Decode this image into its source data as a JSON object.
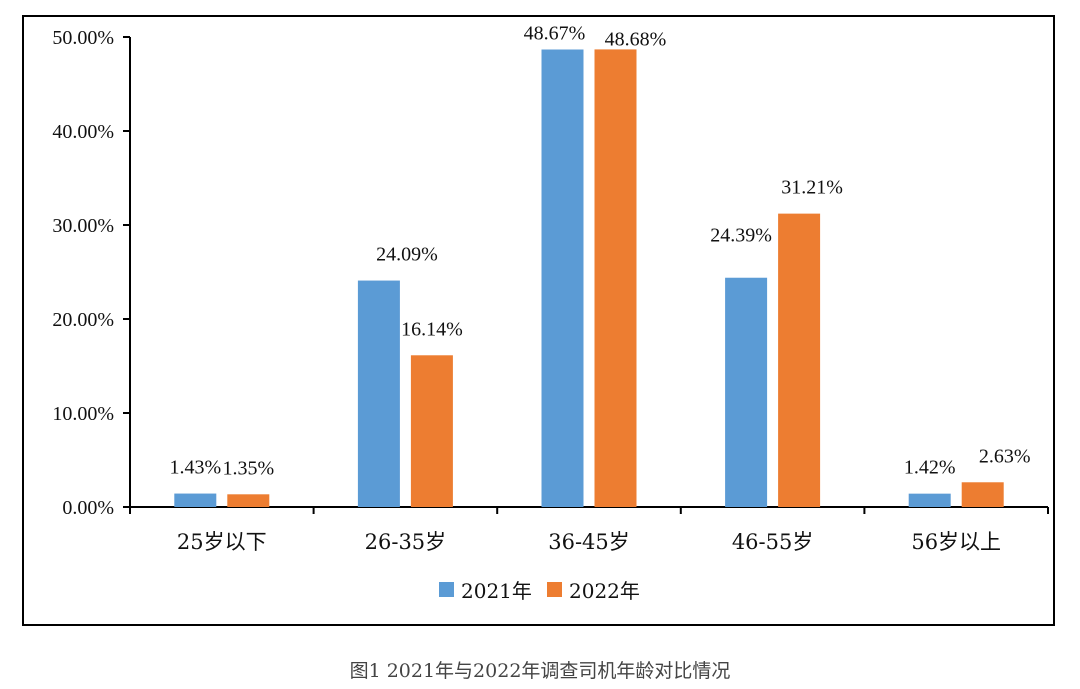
{
  "caption": "图1 2021年与2022年调查司机年龄对比情况",
  "chart_data": {
    "type": "bar",
    "categories": [
      "25岁以下",
      "26-35岁",
      "36-45岁",
      "46-55岁",
      "56岁以上"
    ],
    "series": [
      {
        "name": "2021年",
        "color": "#5b9bd5",
        "values": [
          1.43,
          24.09,
          48.67,
          24.39,
          1.42
        ],
        "labels": [
          "1.43%",
          "24.09%",
          "48.67%",
          "24.39%",
          "1.42%"
        ]
      },
      {
        "name": "2022年",
        "color": "#ed7d31",
        "values": [
          1.35,
          16.14,
          48.68,
          31.21,
          2.63
        ],
        "labels": [
          "1.35%",
          "16.14%",
          "48.68%",
          "31.21%",
          "2.63%"
        ]
      }
    ],
    "ylim": [
      0,
      50
    ],
    "yticks": [
      0,
      10,
      20,
      30,
      40,
      50
    ],
    "ytick_labels": [
      "0.00%",
      "10.00%",
      "20.00%",
      "30.00%",
      "40.00%",
      "50.00%"
    ],
    "legend_position": "bottom",
    "grid": false
  }
}
